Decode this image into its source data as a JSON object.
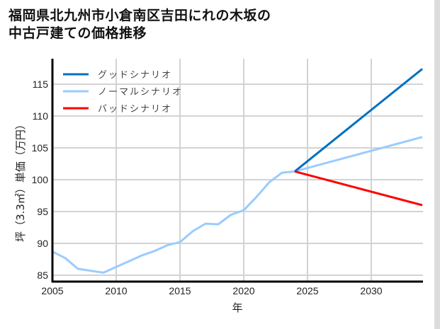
{
  "title_line1": "福岡県北九州市小倉南区吉田にれの木坂の",
  "title_line2": "中古戸建ての価格推移",
  "chart_data": {
    "type": "line",
    "title": "福岡県北九州市小倉南区吉田にれの木坂の中古戸建ての価格推移",
    "xlabel": "年",
    "ylabel": "坪（3.3㎡）単価（万円）",
    "xlim": [
      2005,
      2034
    ],
    "ylim": [
      84,
      119
    ],
    "xticks": [
      2005,
      2010,
      2015,
      2020,
      2025,
      2030
    ],
    "yticks": [
      85,
      90,
      95,
      100,
      105,
      110,
      115
    ],
    "grid": true,
    "legend_position": "upper left",
    "series": [
      {
        "name": "グッドシナリオ",
        "color": "#0070c0",
        "x": [
          2024,
          2034
        ],
        "values": [
          101.3,
          117.4
        ]
      },
      {
        "name": "ノーマルシナリオ",
        "color": "#99ccff",
        "x": [
          2005,
          2006,
          2007,
          2008,
          2009,
          2010,
          2011,
          2012,
          2013,
          2014,
          2015,
          2016,
          2017,
          2018,
          2019,
          2020,
          2021,
          2022,
          2023,
          2024,
          2034
        ],
        "values": [
          88.7,
          87.7,
          86.0,
          85.7,
          85.4,
          86.3,
          87.2,
          88.1,
          88.8,
          89.7,
          90.2,
          91.9,
          93.1,
          93.0,
          94.5,
          95.2,
          97.3,
          99.6,
          101.1,
          101.3,
          106.7
        ]
      },
      {
        "name": "バッドシナリオ",
        "color": "#ff0000",
        "x": [
          2024,
          2034
        ],
        "values": [
          101.3,
          96.0
        ]
      }
    ]
  }
}
